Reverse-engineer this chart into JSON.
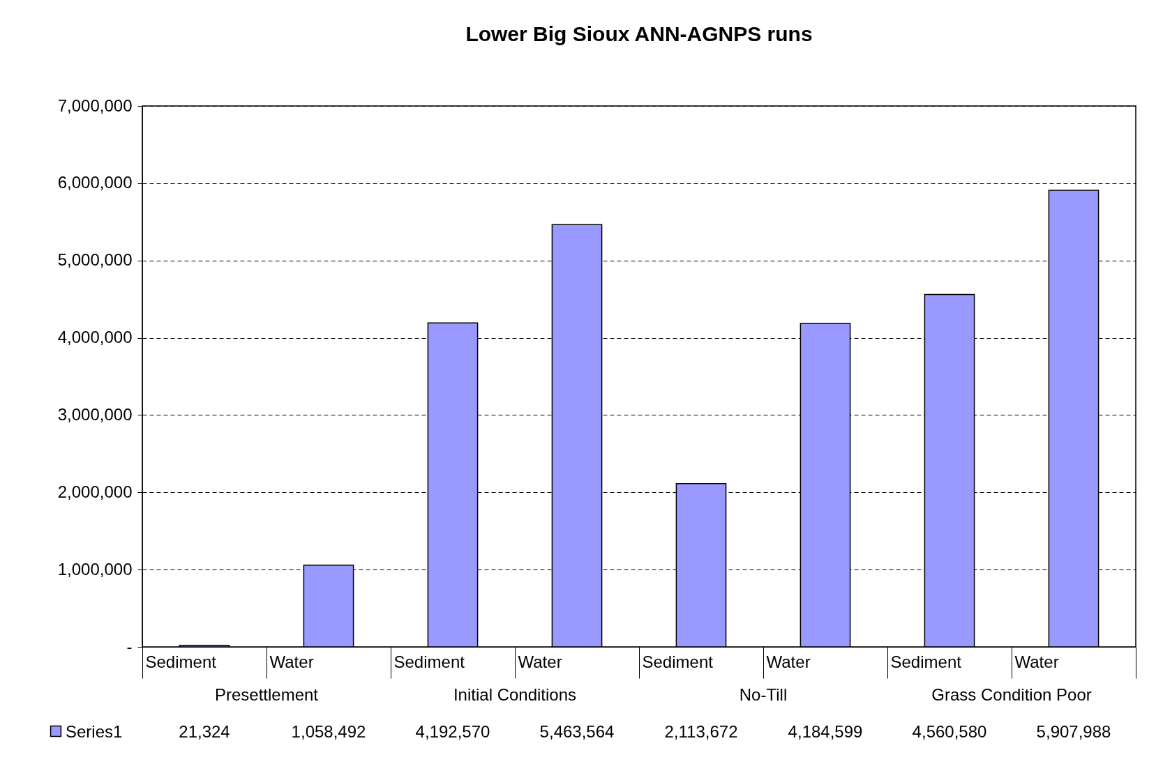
{
  "chart_data": {
    "type": "bar",
    "title": "Lower Big Sioux ANN-AGNPS runs",
    "categories": [
      "Sediment",
      "Water",
      "Sediment",
      "Water",
      "Sediment",
      "Water",
      "Sediment",
      "Water"
    ],
    "annotations": [
      "Presettlement",
      "Initial Conditions",
      "No-Till",
      "Grass Condition Poor"
    ],
    "series": [
      {
        "name": "Series1",
        "color": "#9999ff",
        "values": [
          21324,
          1058492,
          4192570,
          5463564,
          2113672,
          4184599,
          4560580,
          5907988
        ],
        "value_labels": [
          "21,324",
          "1,058,492",
          "4,192,570",
          "5,463,564",
          "2,113,672",
          "4,184,599",
          "4,560,580",
          "5,907,988"
        ]
      }
    ],
    "ylim": [
      0,
      7000000
    ],
    "yticks": [
      {
        "value": 0,
        "label": "-"
      },
      {
        "value": 1000000,
        "label": "1,000,000"
      },
      {
        "value": 2000000,
        "label": "2,000,000"
      },
      {
        "value": 3000000,
        "label": "3,000,000"
      },
      {
        "value": 4000000,
        "label": "4,000,000"
      },
      {
        "value": 5000000,
        "label": "5,000,000"
      },
      {
        "value": 6000000,
        "label": "6,000,000"
      },
      {
        "value": 7000000,
        "label": "7,000,000"
      }
    ],
    "grid": "y",
    "line_style": "dashed",
    "legend": "bottom"
  }
}
